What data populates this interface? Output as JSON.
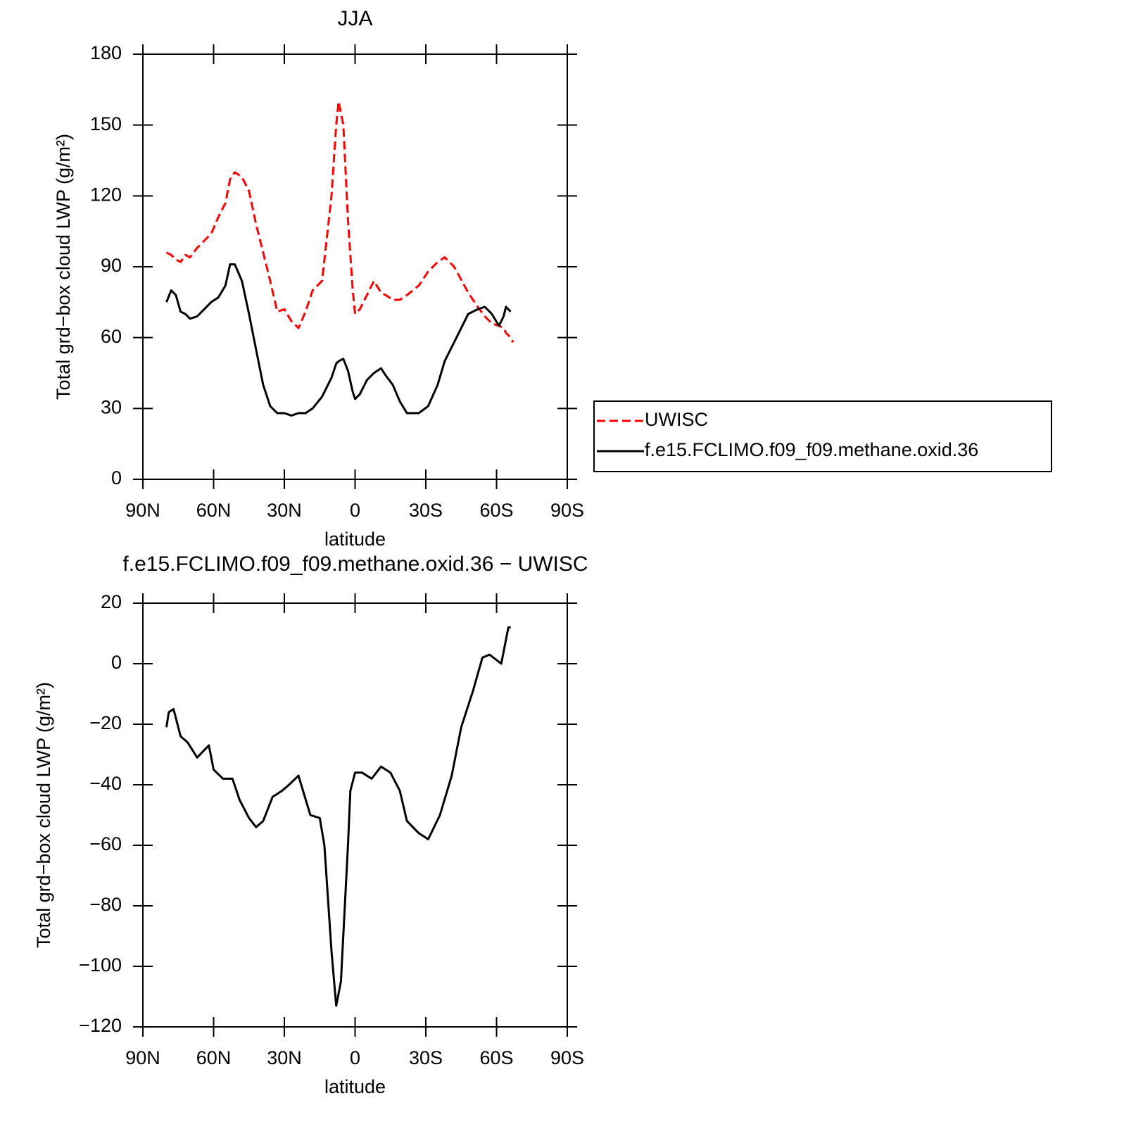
{
  "chart_data": [
    {
      "type": "line",
      "title": "JJA",
      "xlabel": "latitude",
      "ylabel": "Total grd−box cloud LWP (g/m²)",
      "x": [
        80,
        78,
        76,
        74,
        72,
        70,
        67,
        64,
        61,
        58,
        55,
        53,
        51,
        48,
        45,
        42,
        39,
        36,
        33,
        30,
        27,
        24,
        21,
        18,
        14,
        10,
        8,
        7,
        5,
        3,
        1,
        0,
        -2,
        -5,
        -8,
        -11,
        -13,
        -16,
        -19,
        -22,
        -27,
        -31,
        -35,
        -38,
        -42,
        -48,
        -52,
        -55,
        -58,
        -61,
        -63,
        -64,
        -66,
        -67
      ],
      "series": [
        {
          "name": "UWISC",
          "color": "#ff0000",
          "line_style": "dashed",
          "values": [
            96,
            95,
            93,
            92,
            95,
            94,
            98,
            101,
            104,
            111,
            117,
            127,
            130,
            128,
            122,
            108,
            96,
            84,
            71,
            72,
            67,
            64,
            71,
            80,
            84,
            120,
            150,
            160,
            150,
            110,
            80,
            70,
            72,
            78,
            84,
            79,
            78,
            76,
            76,
            78,
            82,
            88,
            92,
            94,
            90,
            79,
            73,
            69,
            66,
            65,
            64,
            62,
            60,
            58
          ]
        },
        {
          "name": "f.e15.FCLIMO.f09_f09.methane.oxid.36",
          "color": "#000000",
          "line_style": "solid",
          "values": [
            75,
            80,
            78,
            71,
            70,
            68,
            69,
            72,
            75,
            77,
            82,
            91,
            91,
            84,
            70,
            55,
            40,
            31,
            28,
            28,
            27,
            28,
            28,
            30,
            35,
            43,
            49,
            50,
            51,
            46,
            37,
            34,
            36,
            42,
            45,
            47,
            44,
            40,
            33,
            28,
            28,
            31,
            40,
            50,
            58,
            70,
            72,
            73,
            70,
            65,
            69,
            73,
            71,
            null
          ]
        }
      ],
      "xlim": [
        90,
        -90
      ],
      "xticks": [
        {
          "value": 90,
          "label": "90N"
        },
        {
          "value": 60,
          "label": "60N"
        },
        {
          "value": 30,
          "label": "30N"
        },
        0,
        {
          "value": -30,
          "label": "30S"
        },
        {
          "value": -60,
          "label": "60S"
        },
        {
          "value": -90,
          "label": "90S"
        }
      ],
      "ylim": [
        0,
        180
      ],
      "yticks": [
        0,
        30,
        60,
        90,
        120,
        150,
        180
      ],
      "legend": "right"
    },
    {
      "type": "line",
      "title": "f.e15.FCLIMO.f09_f09.methane.oxid.36 − UWISC",
      "xlabel": "latitude",
      "ylabel": "Total grd−box cloud LWP (g/m²)",
      "x": [
        80,
        79,
        77,
        74,
        71,
        67,
        62,
        60,
        56,
        52,
        49,
        45,
        42,
        39,
        35,
        31,
        28,
        24,
        19,
        15,
        13,
        10,
        8,
        6,
        3,
        2,
        0,
        -3,
        -7,
        -11,
        -15,
        -19,
        -22,
        -27,
        -31,
        -36,
        -41,
        -45,
        -50,
        -54,
        -57,
        -62,
        -65,
        -66
      ],
      "series": [
        {
          "name": "f.e15.FCLIMO.f09_f09.methane.oxid.36 − UWISC",
          "color": "#000000",
          "line_style": "solid",
          "values": [
            -21,
            -16,
            -15,
            -24,
            -26,
            -31,
            -27,
            -35,
            -38,
            -38,
            -45,
            -51,
            -54,
            -52,
            -44,
            -42,
            -40,
            -37,
            -50,
            -51,
            -60,
            -95,
            -113,
            -105,
            -60,
            -42,
            -36,
            -36,
            -38,
            -34,
            -36,
            -42,
            -52,
            -56,
            -58,
            -50,
            -37,
            -21,
            -9,
            2,
            3,
            0,
            12,
            12
          ]
        }
      ],
      "xlim": [
        90,
        -90
      ],
      "xticks": [
        {
          "value": 90,
          "label": "90N"
        },
        {
          "value": 60,
          "label": "60N"
        },
        {
          "value": 30,
          "label": "30N"
        },
        0,
        {
          "value": -30,
          "label": "30S"
        },
        {
          "value": -60,
          "label": "60S"
        },
        {
          "value": -90,
          "label": "90S"
        }
      ],
      "ylim": [
        -120,
        20
      ],
      "yticks": [
        {
          "value": -120,
          "label": "−120"
        },
        {
          "value": -100,
          "label": "−100"
        },
        {
          "value": -80,
          "label": "−80"
        },
        {
          "value": -60,
          "label": "−60"
        },
        {
          "value": -40,
          "label": "−40"
        },
        {
          "value": -20,
          "label": "−20"
        },
        0,
        20
      ]
    }
  ]
}
